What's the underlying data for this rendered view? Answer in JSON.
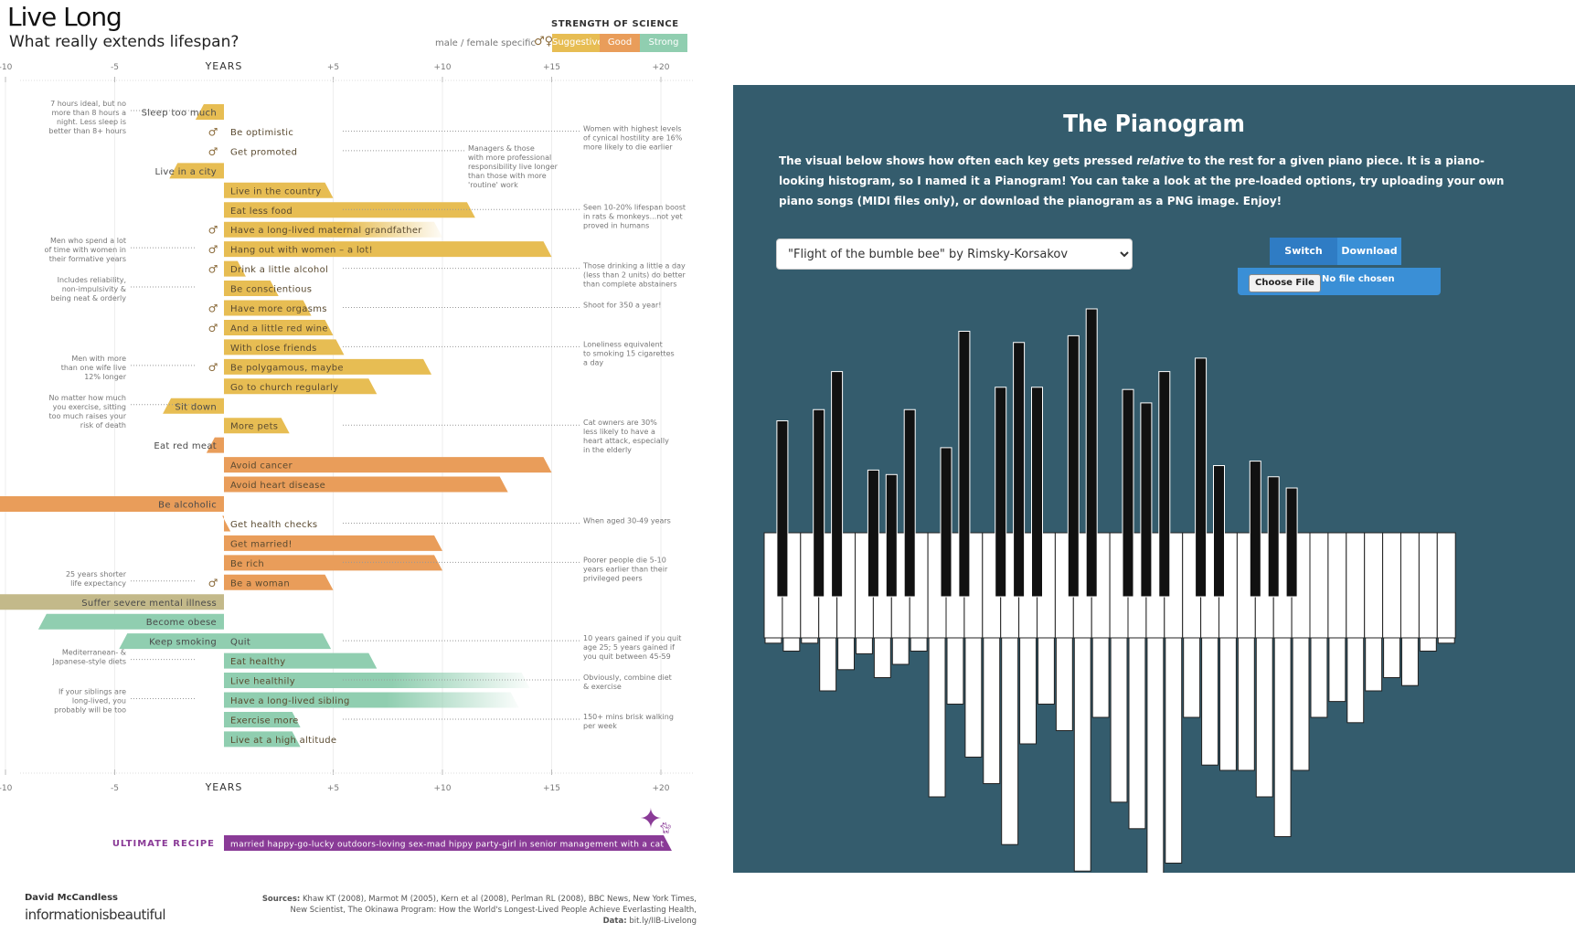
{
  "infographic": {
    "title": "Live Long",
    "subtitle": "What really extends lifespan?",
    "legend": {
      "title": "STRENGTH OF SCIENCE",
      "male_female": "male / female specific",
      "levels": [
        {
          "label": "Suggestive",
          "color": "#e7bd53"
        },
        {
          "label": "Good",
          "color": "#e99d5a"
        },
        {
          "label": "Strong",
          "color": "#90ceb0"
        }
      ]
    },
    "axis_label": "YEARS",
    "footer": {
      "author": "David McCandless",
      "brand": "informationisbeautiful",
      "sources_label": "Sources:",
      "sources": "Khaw KT (2008), Marmot M (2005), Kern et al (2008), Perlman RL (2008), BBC News, New York Times, New Scientist, The Okinawa Program: How the World's Longest-Lived People Achieve Everlasting Health,",
      "data_label": "Data:",
      "data_link": "bit.ly/IIB-Livelong"
    },
    "ultimate_label": "ULTIMATE RECIPE"
  },
  "chart_data": [
    {
      "type": "bar",
      "title": "Live Long",
      "subtitle": "What really extends lifespan?",
      "xlabel": "YEARS",
      "xlim": [
        -11,
        20
      ],
      "xticks": [
        "-10",
        "-5",
        "+5",
        "+10",
        "+15",
        "+20"
      ],
      "tick_values": [
        -10,
        -5,
        5,
        10,
        15,
        20
      ],
      "colors": {
        "suggestive": "#e7bd53",
        "good": "#e99d5a",
        "strong": "#90ceb0",
        "strong_neg": "#c3b98a",
        "ultimate": "#8a3b97"
      },
      "items": [
        {
          "label": "Sleep too much",
          "value": -1.3,
          "strength": "suggestive",
          "note_left": [
            "7 hours ideal, but no",
            "more than 8 hours a",
            "night. Less sleep is",
            "better than 8+ hours"
          ]
        },
        {
          "label": "Be optimistic",
          "value": 0,
          "strength": "suggestive",
          "sex": true,
          "note_right": [
            "Women with highest levels",
            "of cynical hostility are 16%",
            "more likely to die earlier"
          ]
        },
        {
          "label": "Get promoted",
          "value": 0,
          "strength": "suggestive",
          "sex": true,
          "note_right": [
            "Managers & those",
            "with more professional",
            "responsibility live longer",
            "than those with more",
            "'routine' work"
          ]
        },
        {
          "label": "Live in a city",
          "value": -2.5,
          "strength": "suggestive"
        },
        {
          "label": "Live in the country",
          "value": 5,
          "strength": "suggestive"
        },
        {
          "label": "Eat less food",
          "value": 11.5,
          "strength": "suggestive",
          "note_right": [
            "Seen 10-20% lifespan boost",
            "in rats & monkeys...not yet",
            "proved in humans"
          ]
        },
        {
          "label": "Have a long-lived maternal grandfather",
          "value": 10,
          "strength": "suggestive",
          "sex": true,
          "fade": true
        },
        {
          "label": "Hang out with women – a lot!",
          "value": 15,
          "strength": "suggestive",
          "sex": true,
          "note_left": [
            "Men who spend a lot",
            "of time with women in",
            "their formative years"
          ]
        },
        {
          "label": "Drink a little alcohol",
          "value": 1,
          "strength": "suggestive",
          "sex": true,
          "note_right": [
            "Those drinking a little a day",
            "(less than 2 units) do better",
            "than complete abstainers"
          ]
        },
        {
          "label": "Be conscientious",
          "value": 2.5,
          "strength": "suggestive",
          "note_left": [
            "Includes reliability,",
            "non-impulsivity &",
            "being neat & orderly"
          ]
        },
        {
          "label": "Have more orgasms",
          "value": 4,
          "strength": "suggestive",
          "sex": true,
          "note_right": [
            "Shoot for 350 a year!"
          ]
        },
        {
          "label": "And a little red wine",
          "value": 5,
          "strength": "suggestive",
          "sex": true
        },
        {
          "label": "With close friends",
          "value": 5.5,
          "strength": "suggestive",
          "note_right": [
            "Loneliness equivalent",
            "to smoking 15 cigarettes",
            "a day"
          ]
        },
        {
          "label": "Be polygamous, maybe",
          "value": 9.5,
          "strength": "suggestive",
          "sex": true,
          "note_left": [
            "Men with more",
            "than one wife live",
            "12% longer"
          ]
        },
        {
          "label": "Go to church regularly",
          "value": 7,
          "strength": "suggestive"
        },
        {
          "label": "Sit down",
          "value": -2.8,
          "strength": "suggestive",
          "note_left": [
            "No matter how much",
            "you exercise, sitting",
            "too much raises your",
            "risk of death"
          ]
        },
        {
          "label": "More pets",
          "value": 3,
          "strength": "suggestive",
          "note_right": [
            "Cat owners are 30%",
            "less likely to have a",
            "heart attack, especially",
            "in the elderly"
          ]
        },
        {
          "label": "Eat red meat",
          "value": -0.8,
          "strength": "good"
        },
        {
          "label": "Avoid cancer",
          "value": 15,
          "strength": "good"
        },
        {
          "label": "Avoid heart disease",
          "value": 13,
          "strength": "good"
        },
        {
          "label": "Be alcoholic",
          "value": -11,
          "strength": "good"
        },
        {
          "label": "Get health checks",
          "value": 0.3,
          "strength": "good",
          "note_right": [
            "When aged 30-49 years"
          ]
        },
        {
          "label": "Get married!",
          "value": 10,
          "strength": "good"
        },
        {
          "label": "Be rich",
          "value": 10,
          "strength": "good",
          "note_right": [
            "Poorer people die 5-10",
            "years earlier than their",
            "privileged peers"
          ]
        },
        {
          "label": "Be a woman",
          "value": 5,
          "strength": "good",
          "sex": true,
          "note_left": [
            "25 years shorter",
            "life expectancy"
          ]
        },
        {
          "label": "Suffer severe mental illness",
          "value": -11,
          "strength": "strong_neg"
        },
        {
          "label": "Become obese",
          "value": -8.5,
          "strength": "strong"
        },
        {
          "label": "Keep smoking",
          "value": -4.8,
          "strength": "strong",
          "pair": {
            "label": "Quit",
            "value": 4.9
          },
          "note_right": [
            "10 years gained if you quit",
            "age 25; 5 years gained if",
            "you quit between 45-59"
          ]
        },
        {
          "label": "Eat healthy",
          "value": 7,
          "strength": "strong",
          "note_left": [
            "Mediterranean- &",
            "Japanese-style diets"
          ]
        },
        {
          "label": "Live healthily",
          "value": 14,
          "strength": "strong",
          "fade": true,
          "note_right": [
            "Obviously, combine diet",
            "& exercise"
          ]
        },
        {
          "label": "Have a long-lived sibling",
          "value": 13.5,
          "strength": "strong",
          "fade": true,
          "note_left": [
            "If your siblings are",
            "long-lived, you",
            "probably will be too"
          ]
        },
        {
          "label": "Exercise more",
          "value": 3.5,
          "strength": "strong",
          "note_right": [
            "150+ mins brisk walking",
            "per week"
          ]
        },
        {
          "label": "Live at a high altitude",
          "value": 3.5,
          "strength": "strong"
        },
        {
          "label": "married happy-go-lucky outdoors-loving sex-mad hippy party-girl in senior management with a cat",
          "value": 20.5,
          "strength": "ultimate"
        }
      ]
    },
    {
      "type": "bar",
      "title": "The Pianogram",
      "description": "The visual below shows how often each key gets pressed relative to the rest for a given piano piece.",
      "black_keys_above": [
        0.5,
        0.55,
        0.72,
        0.28,
        0.26,
        0.55,
        0.38,
        0.9,
        0.65,
        0.85,
        0.65,
        0.88,
        1.0,
        0.64,
        0.58,
        0.72,
        0.78,
        0.3,
        0.32,
        0.25,
        0.2
      ],
      "white_keys_below": [
        0.02,
        0.05,
        0.02,
        0.2,
        0.12,
        0.06,
        0.15,
        0.1,
        0.05,
        0.6,
        0.25,
        0.45,
        0.55,
        0.78,
        0.4,
        0.25,
        0.35,
        0.88,
        0.3,
        0.62,
        0.72,
        0.98,
        0.85,
        0.3,
        0.48,
        0.5,
        0.5,
        0.6,
        0.75,
        0.5,
        0.3,
        0.24,
        0.32,
        0.2,
        0.15,
        0.18,
        0.05,
        0.02
      ]
    }
  ],
  "pianogram": {
    "title": "The Pianogram",
    "desc_a": "The visual below shows how often each key gets pressed ",
    "desc_em": "relative",
    "desc_b": " to the rest for a given piano piece. It is a piano-looking histogram, so I named it a Pianogram! You can take a look at the pre-loaded options, try uploading your own piano songs (MIDI files only), or download the pianogram as a PNG image. Enjoy!",
    "selected_song": "\"Flight of the bumble bee\" by Rimsky-Korsakov",
    "switch_label": "Switch Style",
    "download_label": "Download",
    "choose_file": "Choose File",
    "no_file": "No file chosen",
    "colors": {
      "background": "#345c6d",
      "button": "#3a8fd6",
      "button_active": "#2f7cc4"
    }
  }
}
